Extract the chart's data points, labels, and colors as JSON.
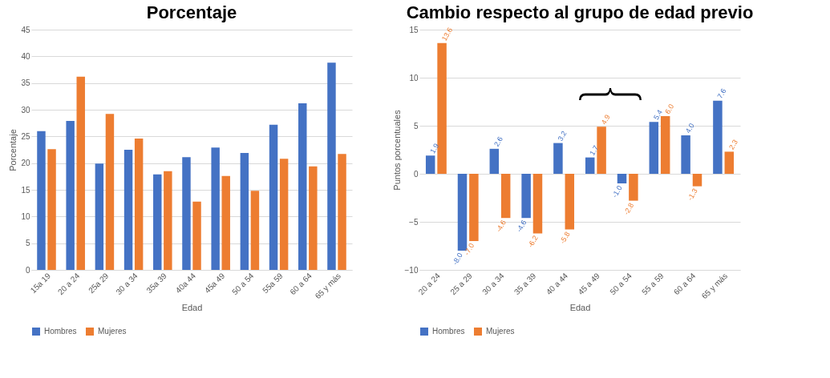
{
  "chart_data": [
    {
      "type": "bar",
      "title": "Porcentaje",
      "xlabel": "Edad",
      "ylabel": "Porcentaje",
      "categories": [
        "15a 19",
        "20 a 24",
        "25a 29",
        "30 a 34",
        "35a 39",
        "40a 44",
        "45a 49",
        "50 a 54",
        "55a 59",
        "60 a 64",
        "65 y más"
      ],
      "series": [
        {
          "name": "Hombres",
          "color": "#4472c4",
          "values": [
            26.0,
            27.9,
            19.9,
            22.5,
            17.9,
            21.1,
            22.9,
            21.9,
            27.2,
            31.2,
            38.8
          ]
        },
        {
          "name": "Mujeres",
          "color": "#ed7d31",
          "values": [
            22.6,
            36.2,
            29.2,
            24.6,
            18.5,
            12.8,
            17.6,
            14.8,
            20.8,
            19.4,
            21.7
          ]
        }
      ],
      "ylim": [
        0,
        45
      ],
      "yticks": [
        0,
        5,
        10,
        15,
        20,
        25,
        30,
        35,
        40,
        45
      ],
      "grid": "y",
      "legend": "bottom"
    },
    {
      "type": "bar",
      "title": "Cambio respecto al grupo de edad previo",
      "xlabel": "Edad",
      "ylabel": "Puntos porcentuales",
      "categories": [
        "20 a 24",
        "25 a 29",
        "30 a 34",
        "35 a 39",
        "40 a 44",
        "45 a 49",
        "50 a 54",
        "55 a 59",
        "60 a 64",
        "65 y más"
      ],
      "series": [
        {
          "name": "Hombres",
          "color": "#4472c4",
          "values": [
            1.9,
            -8.0,
            2.6,
            -4.6,
            3.2,
            1.7,
            -1.0,
            5.4,
            4.0,
            7.6
          ],
          "value_labels": [
            "1.9",
            "-8.0",
            "2.6",
            "-4.6",
            "3.2",
            "1.7",
            "-1.0",
            "5.4",
            "4.0",
            "7.6"
          ]
        },
        {
          "name": "Mujeres",
          "color": "#ed7d31",
          "values": [
            13.6,
            -7.0,
            -4.6,
            -6.2,
            -5.8,
            4.9,
            -2.8,
            6.0,
            -1.3,
            2.3
          ],
          "value_labels": [
            "13.6",
            "-7.0",
            "-4.6",
            "-6.2",
            "-5.8",
            "4.9",
            "-2.8",
            "6.0",
            "-1.3",
            "2.3"
          ]
        }
      ],
      "ylim": [
        -10,
        15
      ],
      "yticks": [
        -10,
        -5,
        0,
        5,
        10,
        15
      ],
      "grid": "y",
      "legend": "bottom"
    }
  ]
}
